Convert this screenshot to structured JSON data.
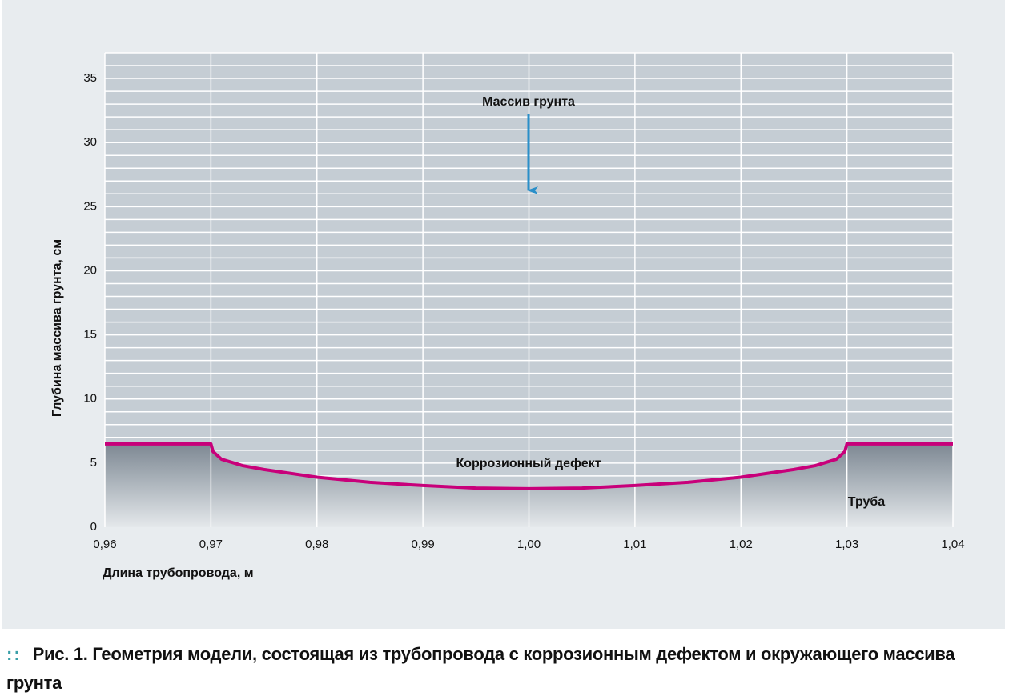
{
  "chart_data": {
    "type": "line",
    "x_label": "Длина трубопровода, м",
    "y_label": "Глубина массива грунта, см",
    "x": [
      0.96,
      0.97,
      0.9702,
      0.971,
      0.973,
      0.975,
      0.98,
      0.985,
      0.99,
      0.995,
      1.0,
      1.005,
      1.01,
      1.015,
      1.02,
      1.025,
      1.027,
      1.029,
      1.0298,
      1.03,
      1.04
    ],
    "values": [
      6.5,
      6.5,
      5.9,
      5.3,
      4.8,
      4.5,
      3.9,
      3.5,
      3.25,
      3.05,
      3.0,
      3.05,
      3.25,
      3.5,
      3.9,
      4.5,
      4.8,
      5.3,
      5.9,
      6.5,
      6.5
    ],
    "color": "#c8007a",
    "xlim": [
      0.96,
      1.04
    ],
    "ylim": [
      0,
      37
    ],
    "xticks": [
      {
        "value": 0.96,
        "label": "0,96"
      },
      {
        "value": 0.97,
        "label": "0,97"
      },
      {
        "value": 0.98,
        "label": "0,98"
      },
      {
        "value": 0.99,
        "label": "0,99"
      },
      {
        "value": 1.0,
        "label": "1,00"
      },
      {
        "value": 1.01,
        "label": "1,01"
      },
      {
        "value": 1.02,
        "label": "1,02"
      },
      {
        "value": 1.03,
        "label": "1,03"
      },
      {
        "value": 1.04,
        "label": "1,04"
      }
    ],
    "yticks": [
      0,
      5,
      10,
      15,
      20,
      25,
      30,
      35
    ],
    "ygrid": [
      1,
      2,
      3,
      4,
      5,
      6,
      7,
      8,
      9,
      10,
      11,
      12,
      13,
      14,
      15,
      16,
      17,
      18,
      19,
      20,
      21,
      22,
      23,
      24,
      25,
      26,
      27,
      28,
      29,
      30,
      31,
      32,
      33,
      34,
      35,
      36,
      37
    ],
    "grid": true,
    "annotations": [
      "Массив грунта",
      "Коррозионный дефект",
      "Труба"
    ],
    "caption": {
      "label": "Рис. 1.",
      "text": "Геометрия модели, состоящая из трубопровода с коррозионным дефектом и окружающего массива грунта"
    }
  }
}
